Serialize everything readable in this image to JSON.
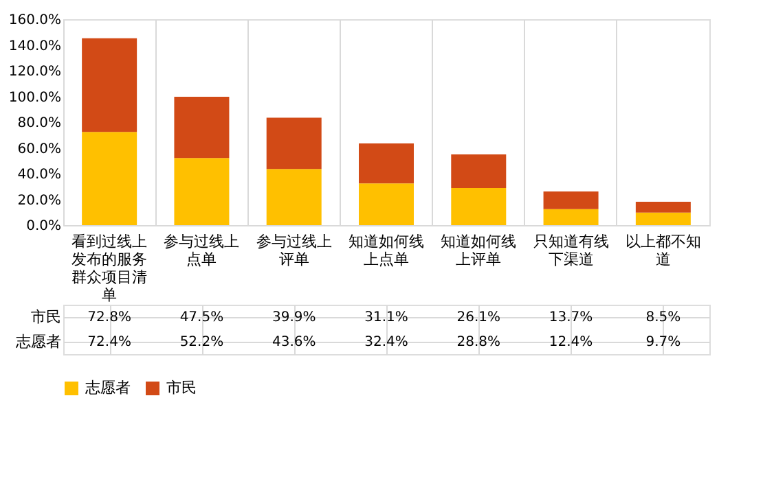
{
  "chart_data": {
    "type": "bar",
    "stacked": true,
    "categories": [
      "看到过线上发布的服务群众项目清单",
      "参与过线上点单",
      "参与过线上评单",
      "知道如何线上点单",
      "知道如何线上评单",
      "只知道有线下渠道",
      "以上都不知道"
    ],
    "series": [
      {
        "name": "志愿者",
        "color": "#ffc000",
        "values": [
          72.4,
          52.2,
          43.6,
          32.4,
          28.8,
          12.4,
          9.7
        ],
        "value_labels": [
          "72.4%",
          "52.2%",
          "43.6%",
          "32.4%",
          "28.8%",
          "12.4%",
          "9.7%"
        ]
      },
      {
        "name": "市民",
        "color": "#d24a16",
        "values": [
          72.8,
          47.5,
          39.9,
          31.1,
          26.1,
          13.7,
          8.5
        ],
        "value_labels": [
          "72.8%",
          "47.5%",
          "39.9%",
          "31.1%",
          "26.1%",
          "13.7%",
          "8.5%"
        ]
      }
    ],
    "ylim": [
      0,
      160
    ],
    "yticks": [
      {
        "value": 0,
        "label": "0.0%"
      },
      {
        "value": 20,
        "label": "20.0%"
      },
      {
        "value": 40,
        "label": "40.0%"
      },
      {
        "value": 60,
        "label": "60.0%"
      },
      {
        "value": 80,
        "label": "80.0%"
      },
      {
        "value": 100,
        "label": "100.0%"
      },
      {
        "value": 120,
        "label": "120.0%"
      },
      {
        "value": 140,
        "label": "140.0%"
      },
      {
        "value": 160,
        "label": "160.0%"
      }
    ],
    "grid": false,
    "legend": "bottom"
  }
}
